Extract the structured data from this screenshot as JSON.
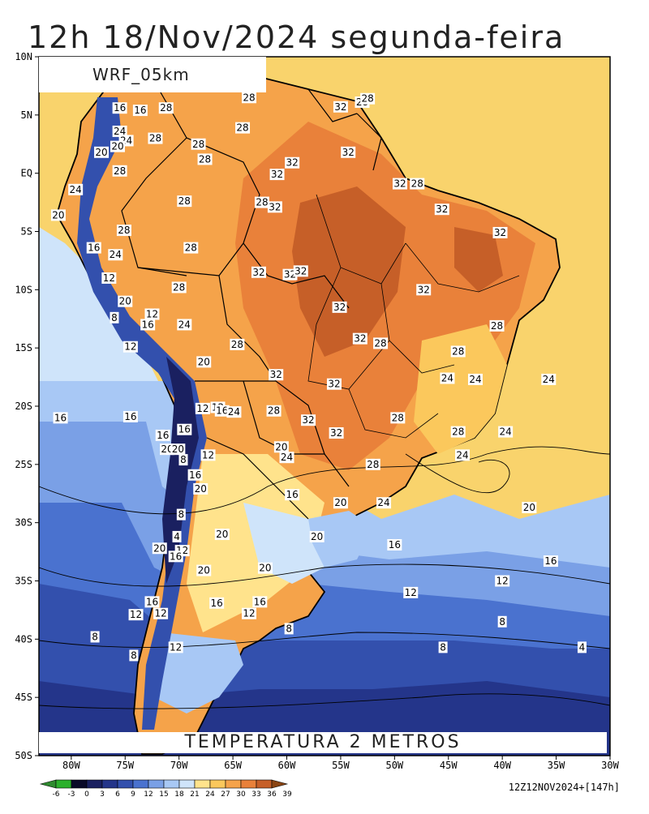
{
  "title": "12h 18/Nov/2024 segunda-feira",
  "model_label": "WRF_05km",
  "variable_label": "TEMPERATURA 2 METROS",
  "run_info": "12Z12NOV2024+[147h]",
  "lat_ticks": [
    "10N",
    "5N",
    "EQ",
    "5S",
    "10S",
    "15S",
    "20S",
    "25S",
    "30S",
    "35S",
    "40S",
    "45S",
    "50S"
  ],
  "lon_ticks": [
    "80W",
    "75W",
    "70W",
    "65W",
    "60W",
    "55W",
    "50W",
    "45W",
    "40W",
    "35W",
    "30W"
  ],
  "colorbar": {
    "labels": [
      "-6",
      "-3",
      "0",
      "3",
      "6",
      "9",
      "12",
      "15",
      "18",
      "21",
      "24",
      "27",
      "30",
      "33",
      "36",
      "39"
    ],
    "colors": [
      "#2e8b2e",
      "#2bb02b",
      "#0a0a28",
      "#1a2060",
      "#24358a",
      "#3350ad",
      "#4a72cf",
      "#7aa0e6",
      "#a8c8f5",
      "#cfe4fa",
      "#ffe38c",
      "#fbc85c",
      "#f5a34a",
      "#e9813a",
      "#c65f28",
      "#8b4513"
    ]
  },
  "contour_labels": [
    {
      "text": "28",
      "lon": -63.5,
      "lat": 6.5
    },
    {
      "text": "32",
      "lon": -55,
      "lat": 5.7
    },
    {
      "text": "28",
      "lon": -53,
      "lat": 6.1
    },
    {
      "text": "28",
      "lon": -52.5,
      "lat": 6.4
    },
    {
      "text": "16",
      "lon": -75.5,
      "lat": 5.6
    },
    {
      "text": "16",
      "lon": -73.6,
      "lat": 5.4
    },
    {
      "text": "28",
      "lon": -71.2,
      "lat": 5.6
    },
    {
      "text": "28",
      "lon": -64.1,
      "lat": 3.9
    },
    {
      "text": "24",
      "lon": -75.5,
      "lat": 3.6
    },
    {
      "text": "24",
      "lon": -74.9,
      "lat": 2.8
    },
    {
      "text": "20",
      "lon": -75.7,
      "lat": 2.3
    },
    {
      "text": "20",
      "lon": -77.2,
      "lat": 1.8
    },
    {
      "text": "28",
      "lon": -72.2,
      "lat": 3.0
    },
    {
      "text": "28",
      "lon": -68.2,
      "lat": 2.5
    },
    {
      "text": "28",
      "lon": -67.6,
      "lat": 1.2
    },
    {
      "text": "32",
      "lon": -54.3,
      "lat": 1.8
    },
    {
      "text": "32",
      "lon": -59.5,
      "lat": 0.9
    },
    {
      "text": "32",
      "lon": -60.9,
      "lat": -0.1
    },
    {
      "text": "28",
      "lon": -75.5,
      "lat": 0.2
    },
    {
      "text": "24",
      "lon": -79.6,
      "lat": -1.4
    },
    {
      "text": "28",
      "lon": -69.5,
      "lat": -2.4
    },
    {
      "text": "28",
      "lon": -62.3,
      "lat": -2.5
    },
    {
      "text": "32",
      "lon": -61.1,
      "lat": -2.9
    },
    {
      "text": "32",
      "lon": -49.5,
      "lat": -0.9
    },
    {
      "text": "28",
      "lon": -47.9,
      "lat": -0.9
    },
    {
      "text": "20",
      "lon": -81.2,
      "lat": -3.6
    },
    {
      "text": "28",
      "lon": -75.1,
      "lat": -4.9
    },
    {
      "text": "32",
      "lon": -45.6,
      "lat": -3.1
    },
    {
      "text": "32",
      "lon": -40.2,
      "lat": -5.1
    },
    {
      "text": "28",
      "lon": -68.9,
      "lat": -6.4
    },
    {
      "text": "16",
      "lon": -77.9,
      "lat": -6.4
    },
    {
      "text": "24",
      "lon": -75.9,
      "lat": -7.0
    },
    {
      "text": "32",
      "lon": -62.6,
      "lat": -8.5
    },
    {
      "text": "32",
      "lon": -59.7,
      "lat": -8.7
    },
    {
      "text": "32",
      "lon": -58.7,
      "lat": -8.4
    },
    {
      "text": "12",
      "lon": -76.5,
      "lat": -9.0
    },
    {
      "text": "28",
      "lon": -70.0,
      "lat": -9.8
    },
    {
      "text": "32",
      "lon": -47.3,
      "lat": -10.0
    },
    {
      "text": "20",
      "lon": -75.0,
      "lat": -11.0
    },
    {
      "text": "32",
      "lon": -55.1,
      "lat": -11.5
    },
    {
      "text": "8",
      "lon": -76.0,
      "lat": -12.4
    },
    {
      "text": "12",
      "lon": -72.5,
      "lat": -12.1
    },
    {
      "text": "16",
      "lon": -72.9,
      "lat": -13.0
    },
    {
      "text": "24",
      "lon": -69.5,
      "lat": -13.0
    },
    {
      "text": "28",
      "lon": -40.5,
      "lat": -13.1
    },
    {
      "text": "32",
      "lon": -53.2,
      "lat": -14.2
    },
    {
      "text": "28",
      "lon": -51.3,
      "lat": -14.6
    },
    {
      "text": "12",
      "lon": -74.5,
      "lat": -14.9
    },
    {
      "text": "28",
      "lon": -64.6,
      "lat": -14.7
    },
    {
      "text": "28",
      "lon": -44.1,
      "lat": -15.3
    },
    {
      "text": "20",
      "lon": -67.7,
      "lat": -16.2
    },
    {
      "text": "32",
      "lon": -61.0,
      "lat": -17.3
    },
    {
      "text": "24",
      "lon": -45.1,
      "lat": -17.6
    },
    {
      "text": "24",
      "lon": -42.5,
      "lat": -17.7
    },
    {
      "text": "24",
      "lon": -35.7,
      "lat": -17.7
    },
    {
      "text": "32",
      "lon": -55.6,
      "lat": -18.1
    },
    {
      "text": "12",
      "lon": -67.8,
      "lat": -20.2
    },
    {
      "text": "12",
      "lon": -66.4,
      "lat": -20.1
    },
    {
      "text": "16",
      "lon": -66.0,
      "lat": -20.4
    },
    {
      "text": "24",
      "lon": -64.9,
      "lat": -20.5
    },
    {
      "text": "28",
      "lon": -61.2,
      "lat": -20.4
    },
    {
      "text": "16",
      "lon": -74.5,
      "lat": -20.9
    },
    {
      "text": "16",
      "lon": -81.0,
      "lat": -21.0
    },
    {
      "text": "28",
      "lon": -49.7,
      "lat": -21.0
    },
    {
      "text": "32",
      "lon": -58.0,
      "lat": -21.2
    },
    {
      "text": "16",
      "lon": -69.5,
      "lat": -22.0
    },
    {
      "text": "32",
      "lon": -55.4,
      "lat": -22.3
    },
    {
      "text": "28",
      "lon": -44.1,
      "lat": -22.2
    },
    {
      "text": "24",
      "lon": -39.7,
      "lat": -22.2
    },
    {
      "text": "16",
      "lon": -71.5,
      "lat": -22.5
    },
    {
      "text": "20",
      "lon": -60.5,
      "lat": -23.5
    },
    {
      "text": "20",
      "lon": -71.1,
      "lat": -23.7
    },
    {
      "text": "20",
      "lon": -70.1,
      "lat": -23.7
    },
    {
      "text": "12",
      "lon": -67.3,
      "lat": -24.2
    },
    {
      "text": "24",
      "lon": -43.7,
      "lat": -24.2
    },
    {
      "text": "8",
      "lon": -69.6,
      "lat": -24.6
    },
    {
      "text": "24",
      "lon": -60.0,
      "lat": -24.4
    },
    {
      "text": "28",
      "lon": -52.0,
      "lat": -25.0
    },
    {
      "text": "16",
      "lon": -68.5,
      "lat": -25.9
    },
    {
      "text": "20",
      "lon": -68.0,
      "lat": -27.1
    },
    {
      "text": "16",
      "lon": -59.5,
      "lat": -27.6
    },
    {
      "text": "20",
      "lon": -55.0,
      "lat": -28.3
    },
    {
      "text": "24",
      "lon": -51.0,
      "lat": -28.3
    },
    {
      "text": "20",
      "lon": -37.5,
      "lat": -28.7
    },
    {
      "text": "8",
      "lon": -69.8,
      "lat": -29.3
    },
    {
      "text": "20",
      "lon": -66.0,
      "lat": -31.0
    },
    {
      "text": "4",
      "lon": -70.2,
      "lat": -31.2
    },
    {
      "text": "20",
      "lon": -57.2,
      "lat": -31.2
    },
    {
      "text": "16",
      "lon": -50.0,
      "lat": -31.9
    },
    {
      "text": "20",
      "lon": -71.8,
      "lat": -32.2
    },
    {
      "text": "12",
      "lon": -69.7,
      "lat": -32.4
    },
    {
      "text": "16",
      "lon": -70.3,
      "lat": -32.9
    },
    {
      "text": "20",
      "lon": -67.7,
      "lat": -34.1
    },
    {
      "text": "16",
      "lon": -35.5,
      "lat": -33.3
    },
    {
      "text": "20",
      "lon": -62.0,
      "lat": -33.9
    },
    {
      "text": "12",
      "lon": -40.0,
      "lat": -35.0
    },
    {
      "text": "12",
      "lon": -48.5,
      "lat": -36.0
    },
    {
      "text": "16",
      "lon": -72.5,
      "lat": -36.8
    },
    {
      "text": "16",
      "lon": -66.5,
      "lat": -36.9
    },
    {
      "text": "16",
      "lon": -62.5,
      "lat": -36.8
    },
    {
      "text": "12",
      "lon": -74.0,
      "lat": -37.9
    },
    {
      "text": "12",
      "lon": -71.7,
      "lat": -37.8
    },
    {
      "text": "12",
      "lon": -63.5,
      "lat": -37.8
    },
    {
      "text": "8",
      "lon": -40.0,
      "lat": -38.5
    },
    {
      "text": "8",
      "lon": -59.8,
      "lat": -39.1
    },
    {
      "text": "8",
      "lon": -77.8,
      "lat": -39.8
    },
    {
      "text": "12",
      "lon": -70.3,
      "lat": -40.7
    },
    {
      "text": "8",
      "lon": -45.5,
      "lat": -40.7
    },
    {
      "text": "4",
      "lon": -32.6,
      "lat": -40.7
    },
    {
      "text": "8",
      "lon": -74.2,
      "lat": -41.4
    }
  ]
}
